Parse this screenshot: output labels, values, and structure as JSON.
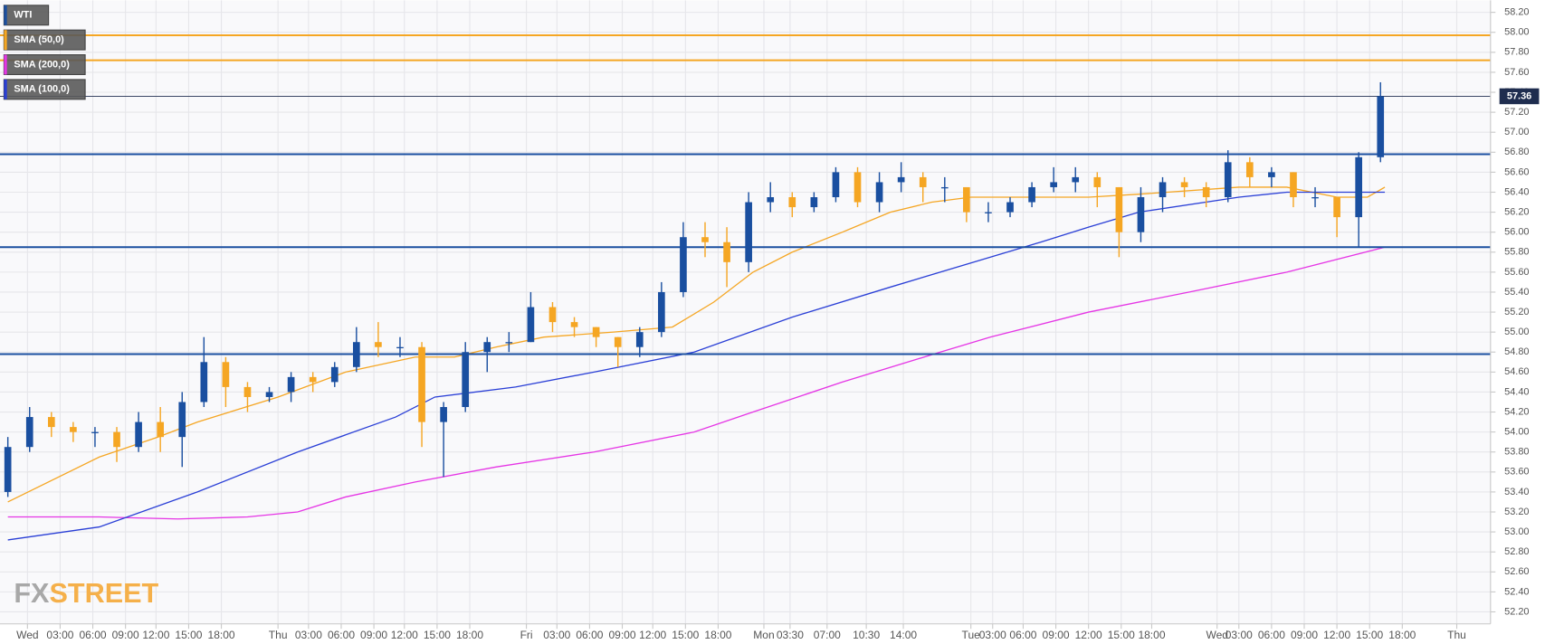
{
  "chart_data": {
    "type": "candlestick",
    "series": [
      {
        "name": "WTI",
        "up_color": "#1a4fa0",
        "down_color": "#f5a623",
        "x": [
          0,
          1,
          2,
          3,
          4,
          5,
          6,
          7,
          8,
          9,
          10,
          11,
          12,
          13,
          14,
          15,
          16,
          17,
          18,
          19,
          20,
          21,
          22,
          23,
          24,
          25,
          26,
          27,
          28,
          29,
          30,
          31,
          32,
          33,
          34,
          35,
          36,
          37,
          38,
          39,
          40,
          41,
          42,
          43,
          44,
          45,
          46,
          47,
          48,
          49,
          50,
          51,
          52,
          53,
          54,
          55,
          56,
          57,
          58,
          59,
          60,
          61,
          62,
          63
        ],
        "open": [
          53.4,
          53.85,
          54.15,
          54.05,
          54,
          54,
          53.85,
          54.1,
          53.95,
          54.3,
          54.7,
          54.45,
          54.35,
          54.4,
          54.55,
          54.5,
          54.65,
          54.9,
          54.85,
          54.85,
          54.1,
          54.25,
          54.8,
          54.9,
          54.9,
          55.25,
          55.1,
          55.05,
          54.95,
          54.85,
          55,
          55.4,
          55.95,
          55.9,
          55.7,
          56.3,
          56.35,
          56.25,
          56.35,
          56.6,
          56.3,
          56.5,
          56.55,
          56.45,
          56.45,
          56.2,
          56.2,
          56.3,
          56.45,
          56.5,
          56.55,
          56.45,
          56,
          56.35,
          56.5,
          56.45,
          56.35,
          56.7,
          56.55,
          56.6,
          56.35,
          56.35,
          56.15,
          56.75
        ],
        "high": [
          53.95,
          54.25,
          54.2,
          54.1,
          54.05,
          54.05,
          54.2,
          54.25,
          54.4,
          54.95,
          54.75,
          54.5,
          54.45,
          54.6,
          54.6,
          54.7,
          55.05,
          55.1,
          54.95,
          54.9,
          54.3,
          54.9,
          54.95,
          55,
          55.4,
          55.3,
          55.15,
          55.05,
          54.95,
          55.05,
          55.5,
          56.1,
          56.1,
          56.05,
          56.4,
          56.5,
          56.4,
          56.4,
          56.65,
          56.65,
          56.6,
          56.7,
          56.6,
          56.55,
          56.45,
          56.3,
          56.35,
          56.5,
          56.65,
          56.65,
          56.6,
          56.45,
          56.45,
          56.55,
          56.55,
          56.5,
          56.82,
          56.75,
          56.65,
          56.6,
          56.45,
          56.35,
          56.8,
          57.5
        ],
        "low": [
          53.35,
          53.8,
          53.95,
          53.9,
          53.85,
          53.7,
          53.8,
          53.8,
          53.65,
          54.25,
          54.25,
          54.2,
          54.3,
          54.3,
          54.4,
          54.45,
          54.6,
          54.75,
          54.75,
          53.85,
          53.55,
          54.2,
          54.6,
          54.8,
          54.9,
          55,
          54.95,
          54.85,
          54.65,
          54.75,
          54.95,
          55.35,
          55.75,
          55.45,
          55.6,
          56.2,
          56.15,
          56.2,
          56.3,
          56.25,
          56.2,
          56.4,
          56.3,
          56.3,
          56.1,
          56.1,
          56.15,
          56.25,
          56.4,
          56.4,
          56.25,
          55.75,
          55.9,
          56.2,
          56.35,
          56.25,
          56.3,
          56.45,
          56.45,
          56.25,
          56.25,
          55.95,
          55.85,
          56.7
        ],
        "close": [
          53.85,
          54.15,
          54.05,
          54,
          54,
          53.85,
          54.1,
          53.95,
          54.3,
          54.7,
          54.45,
          54.35,
          54.4,
          54.55,
          54.5,
          54.65,
          54.9,
          54.85,
          54.85,
          54.1,
          54.25,
          54.8,
          54.9,
          54.9,
          55.25,
          55.1,
          55.05,
          54.95,
          54.85,
          55,
          55.4,
          55.95,
          55.9,
          55.7,
          56.3,
          56.35,
          56.25,
          56.35,
          56.6,
          56.3,
          56.5,
          56.55,
          56.45,
          56.45,
          56.2,
          56.2,
          56.3,
          56.45,
          56.5,
          56.55,
          56.45,
          56,
          56.35,
          56.5,
          56.45,
          56.35,
          56.7,
          56.55,
          56.6,
          56.35,
          56.35,
          56.15,
          56.75,
          57.36
        ]
      },
      {
        "name": "SMA (50,0)",
        "color": "#f5a623",
        "x": [
          0,
          4.2,
          6.9,
          8.7,
          12.4,
          15.5,
          18.7,
          20.5,
          22.4,
          24.6,
          27.8,
          30.5,
          32.4,
          34.2,
          36,
          38.3,
          40.5,
          42.4,
          44.2,
          47.4,
          49.6,
          51.9,
          56.5,
          58.7,
          61,
          62.4,
          63.2
        ],
        "values": [
          53.3,
          53.75,
          53.95,
          54.1,
          54.35,
          54.6,
          54.75,
          54.75,
          54.85,
          54.95,
          55,
          55.05,
          55.3,
          55.6,
          55.8,
          56,
          56.2,
          56.3,
          56.35,
          56.35,
          56.35,
          56.38,
          56.45,
          56.45,
          56.35,
          56.35,
          56.45
        ]
      },
      {
        "name": "SMA (200,0)",
        "color": "#e535e5",
        "x": [
          0,
          4.2,
          7.8,
          11,
          13.3,
          15.5,
          18.7,
          22.4,
          26.9,
          31.5,
          34.2,
          38.3,
          42.8,
          45.1,
          49.6,
          54.2,
          58.7,
          63.2
        ],
        "values": [
          53.15,
          53.15,
          53.13,
          53.15,
          53.2,
          53.35,
          53.5,
          53.65,
          53.8,
          54,
          54.2,
          54.5,
          54.8,
          54.95,
          55.2,
          55.4,
          55.6,
          55.85
        ]
      },
      {
        "name": "SMA (100,0)",
        "color": "#2a3fd6",
        "x": [
          0,
          4.2,
          8.7,
          13.3,
          17.8,
          19.6,
          23.3,
          26.9,
          31.5,
          36,
          40.5,
          45.1,
          47.4,
          49.6,
          51.9,
          56.5,
          58.7,
          61,
          63.2
        ],
        "values": [
          52.92,
          53.05,
          53.4,
          53.8,
          54.15,
          54.35,
          54.45,
          54.6,
          54.8,
          55.15,
          55.45,
          55.75,
          55.9,
          56.05,
          56.2,
          56.35,
          56.4,
          56.4,
          56.4
        ]
      }
    ],
    "levels": [
      {
        "value": 57.97,
        "color": "#f5a623"
      },
      {
        "value": 57.72,
        "color": "#f5a623"
      },
      {
        "value": 56.78,
        "color": "#1a4fa0"
      },
      {
        "value": 55.85,
        "color": "#1a4fa0"
      },
      {
        "value": 54.78,
        "color": "#1a4fa0"
      }
    ],
    "last_price": 57.36,
    "watermark": [
      "FX",
      "STREET"
    ],
    "grid": true,
    "xlim": [
      -0.36,
      68.05
    ],
    "ylim": [
      52.08,
      58.32
    ],
    "xticks": [
      {
        "value": 0.9,
        "label": "Wed"
      },
      {
        "value": 2.4,
        "label": "03:00"
      },
      {
        "value": 3.9,
        "label": "06:00"
      },
      {
        "value": 5.4,
        "label": "09:00"
      },
      {
        "value": 6.8,
        "label": "12:00"
      },
      {
        "value": 8.3,
        "label": "15:00"
      },
      {
        "value": 9.8,
        "label": "18:00"
      },
      {
        "value": 12.4,
        "label": "Thu"
      },
      {
        "value": 13.8,
        "label": "03:00"
      },
      {
        "value": 15.3,
        "label": "06:00"
      },
      {
        "value": 16.8,
        "label": "09:00"
      },
      {
        "value": 18.2,
        "label": "12:00"
      },
      {
        "value": 19.7,
        "label": "15:00"
      },
      {
        "value": 21.2,
        "label": "18:00"
      },
      {
        "value": 23.8,
        "label": "Fri"
      },
      {
        "value": 25.2,
        "label": "03:00"
      },
      {
        "value": 26.7,
        "label": "06:00"
      },
      {
        "value": 28.2,
        "label": "09:00"
      },
      {
        "value": 29.6,
        "label": "12:00"
      },
      {
        "value": 31.1,
        "label": "15:00"
      },
      {
        "value": 32.6,
        "label": "18:00"
      },
      {
        "value": 34.7,
        "label": "Mon"
      },
      {
        "value": 35.9,
        "label": "03:30"
      },
      {
        "value": 37.6,
        "label": "07:00"
      },
      {
        "value": 39.4,
        "label": "10:30"
      },
      {
        "value": 41.1,
        "label": "14:00"
      },
      {
        "value": 44.2,
        "label": "Tue"
      },
      {
        "value": 45.2,
        "label": "03:00"
      },
      {
        "value": 46.6,
        "label": "06:00"
      },
      {
        "value": 48.1,
        "label": "09:00"
      },
      {
        "value": 49.6,
        "label": "12:00"
      },
      {
        "value": 51.1,
        "label": "15:00"
      },
      {
        "value": 52.5,
        "label": "18:00"
      },
      {
        "value": 55.5,
        "label": "Wed"
      },
      {
        "value": 56.5,
        "label": "03:00"
      },
      {
        "value": 58,
        "label": "06:00"
      },
      {
        "value": 59.5,
        "label": "09:00"
      },
      {
        "value": 61,
        "label": "12:00"
      },
      {
        "value": 62.5,
        "label": "15:00"
      },
      {
        "value": 64,
        "label": "18:00"
      },
      {
        "value": 66.5,
        "label": "Thu"
      }
    ],
    "yticks": [
      {
        "value": 52.2,
        "label": "52.20"
      },
      {
        "value": 52.4,
        "label": "52.40"
      },
      {
        "value": 52.6,
        "label": "52.60"
      },
      {
        "value": 52.8,
        "label": "52.80"
      },
      {
        "value": 53,
        "label": "53.00"
      },
      {
        "value": 53.2,
        "label": "53.20"
      },
      {
        "value": 53.4,
        "label": "53.40"
      },
      {
        "value": 53.6,
        "label": "53.60"
      },
      {
        "value": 53.8,
        "label": "53.80"
      },
      {
        "value": 54,
        "label": "54.00"
      },
      {
        "value": 54.2,
        "label": "54.20"
      },
      {
        "value": 54.4,
        "label": "54.40"
      },
      {
        "value": 54.6,
        "label": "54.60"
      },
      {
        "value": 54.8,
        "label": "54.80"
      },
      {
        "value": 55,
        "label": "55.00"
      },
      {
        "value": 55.2,
        "label": "55.20"
      },
      {
        "value": 55.4,
        "label": "55.40"
      },
      {
        "value": 55.6,
        "label": "55.60"
      },
      {
        "value": 55.8,
        "label": "55.80"
      },
      {
        "value": 56,
        "label": "56.00"
      },
      {
        "value": 56.2,
        "label": "56.20"
      },
      {
        "value": 56.4,
        "label": "56.40"
      },
      {
        "value": 56.6,
        "label": "56.60"
      },
      {
        "value": 56.8,
        "label": "56.80"
      },
      {
        "value": 57,
        "label": "57.00"
      },
      {
        "value": 57.2,
        "label": "57.20"
      },
      {
        "value": 57.4,
        "label": "57.40"
      },
      {
        "value": 57.6,
        "label": "57.60"
      },
      {
        "value": 57.8,
        "label": "57.80"
      },
      {
        "value": 58,
        "label": "58.00"
      },
      {
        "value": 58.2,
        "label": "58.20"
      }
    ]
  }
}
